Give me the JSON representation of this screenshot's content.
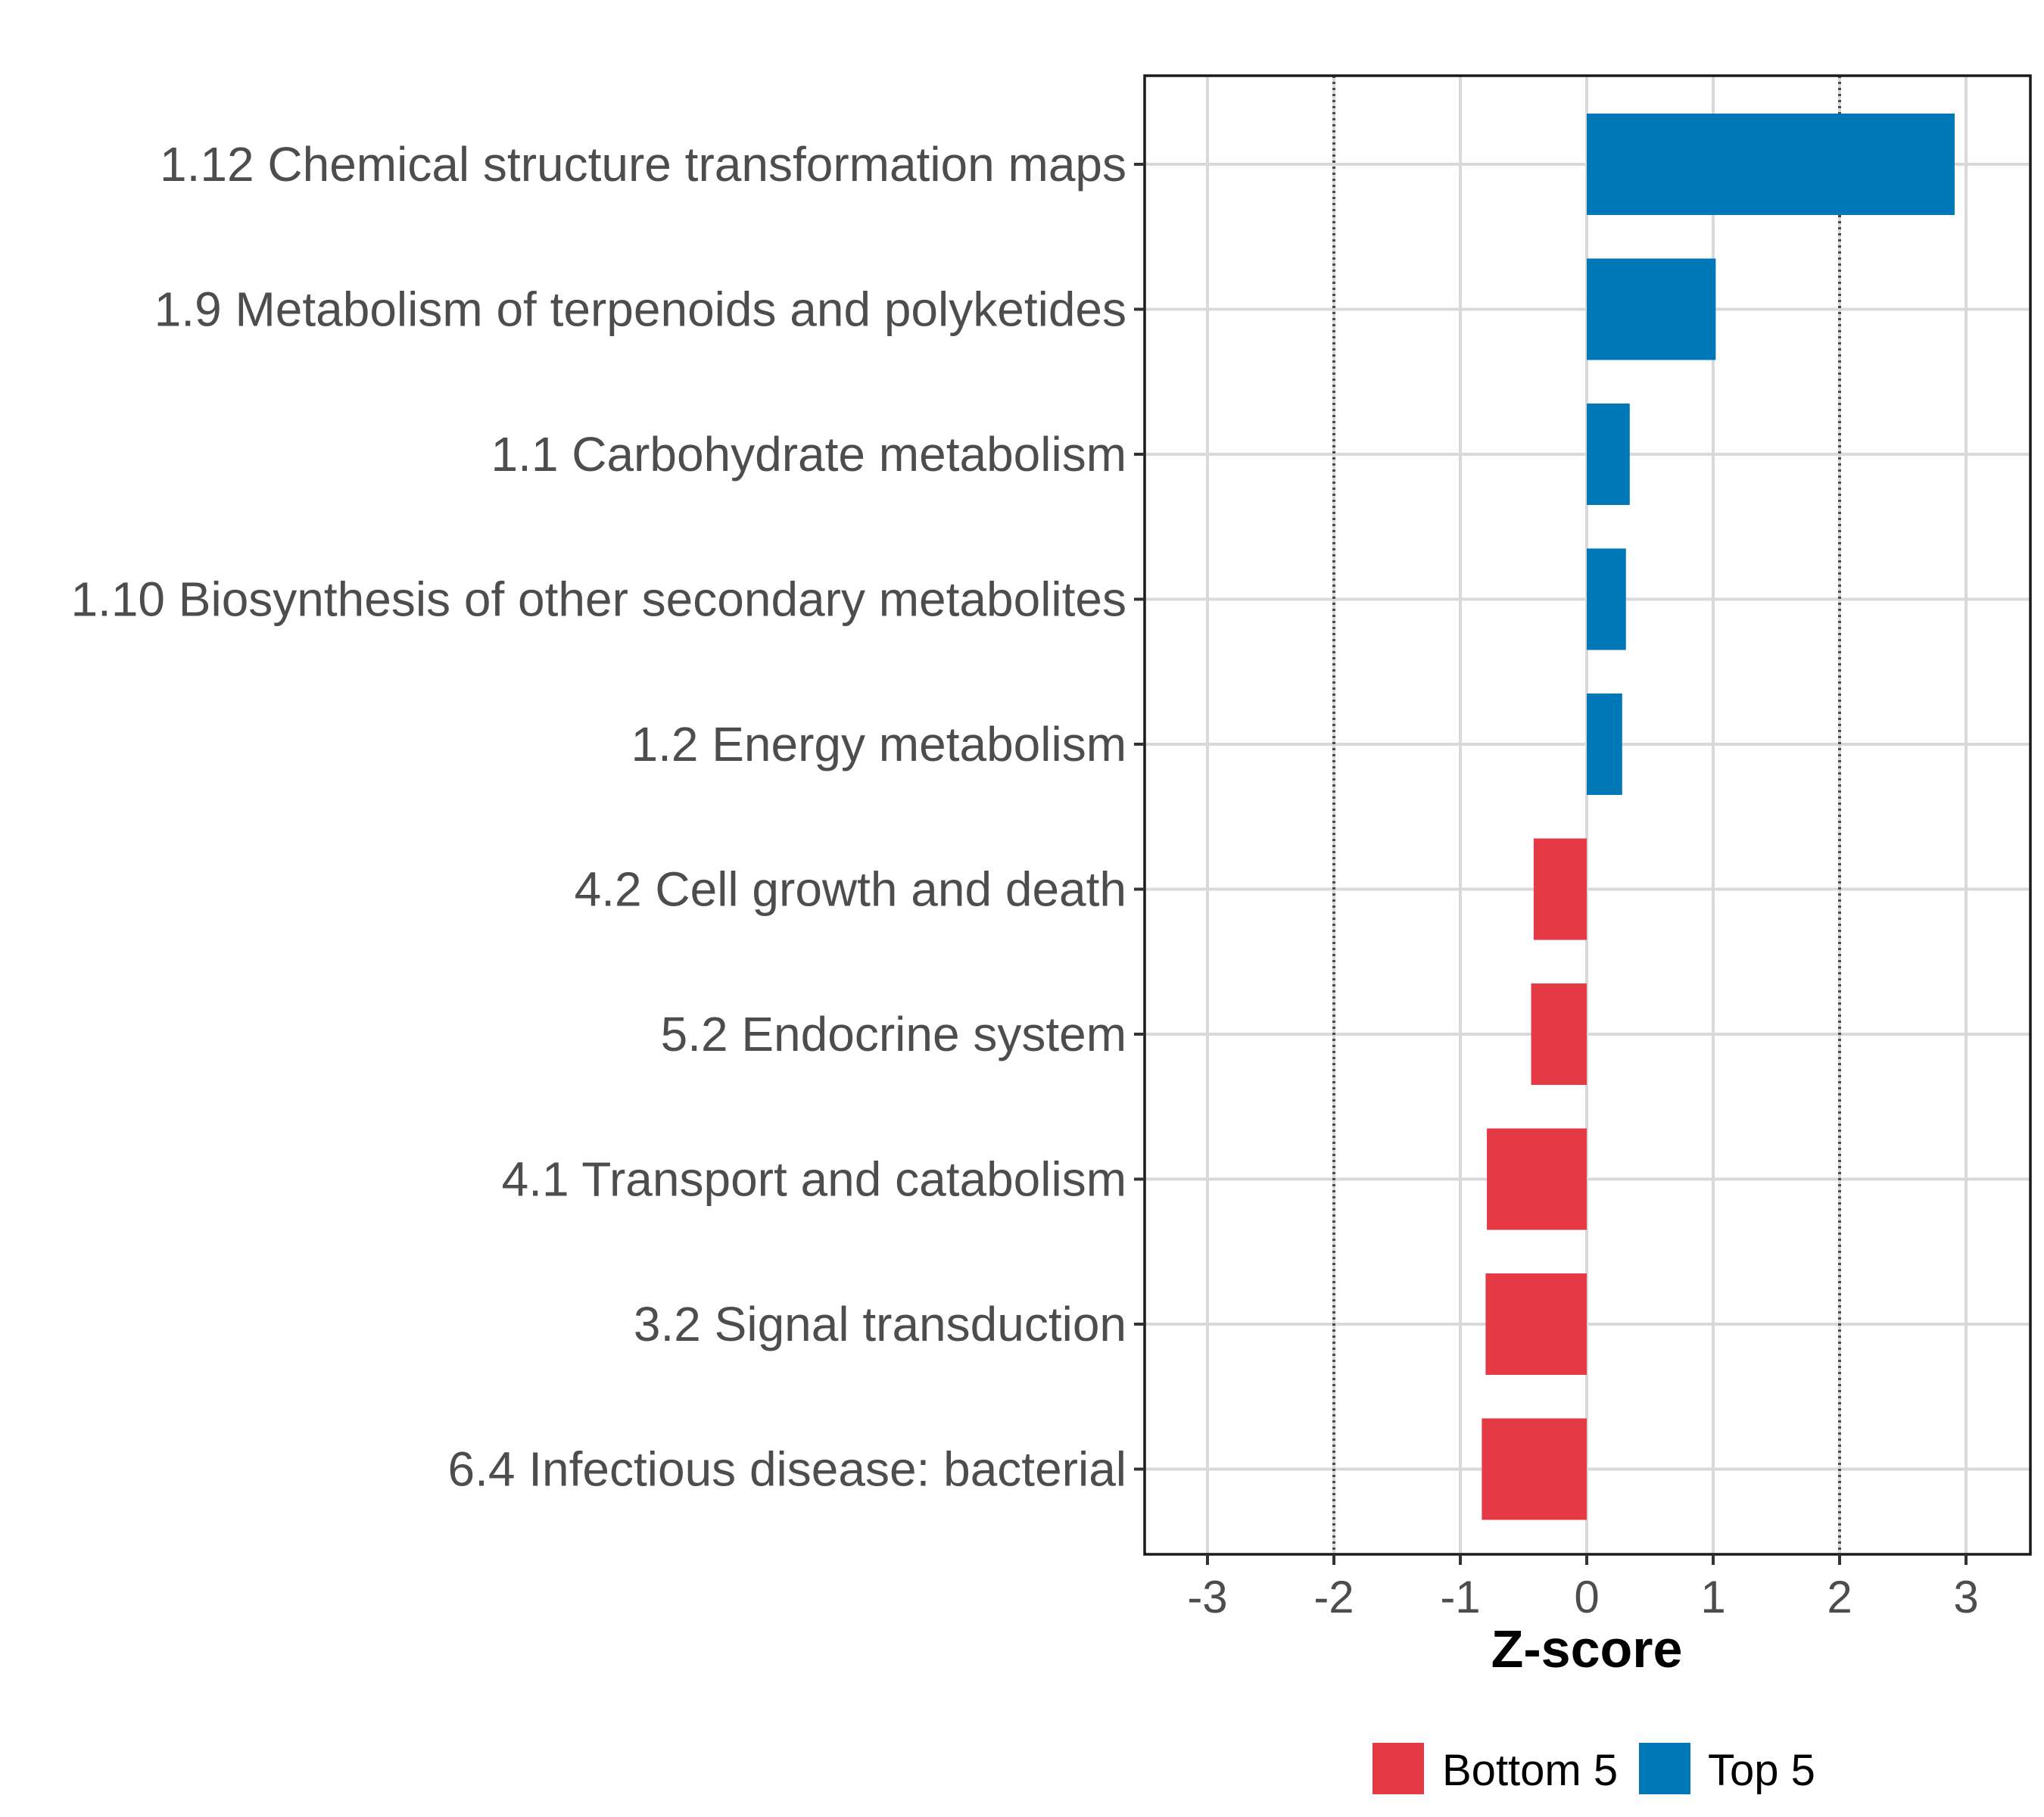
{
  "chart_data": {
    "type": "bar",
    "orientation": "horizontal",
    "title": "",
    "xlabel": "Z-score",
    "ylabel": "",
    "xlim": [
      -3.5,
      3.5
    ],
    "xticks": [
      "-3",
      "-2",
      "-1",
      "0",
      "1",
      "2",
      "3"
    ],
    "xtick_values": [
      -3,
      -2,
      -1,
      0,
      1,
      2,
      3
    ],
    "reference_lines": [
      -2,
      2
    ],
    "grid": true,
    "legend_position": "bottom",
    "categories": [
      "1.12 Chemical structure transformation maps",
      "1.9 Metabolism of terpenoids and polyketides",
      "1.1 Carbohydrate metabolism",
      "1.10 Biosynthesis of other secondary metabolites",
      "1.2 Energy metabolism",
      "4.2 Cell growth and death",
      "5.2 Endocrine system",
      "4.1 Transport and catabolism",
      "3.2 Signal transduction",
      "6.4 Infectious disease: bacterial"
    ],
    "values": [
      2.91,
      1.02,
      0.34,
      0.31,
      0.28,
      -0.42,
      -0.44,
      -0.79,
      -0.8,
      -0.83
    ],
    "groups": [
      "Top 5",
      "Top 5",
      "Top 5",
      "Top 5",
      "Top 5",
      "Bottom 5",
      "Bottom 5",
      "Bottom 5",
      "Bottom 5",
      "Bottom 5"
    ],
    "colors": {
      "Bottom 5": "#E63946",
      "Top 5": "#0077B6"
    },
    "legend": [
      "Bottom 5",
      "Top 5"
    ]
  }
}
